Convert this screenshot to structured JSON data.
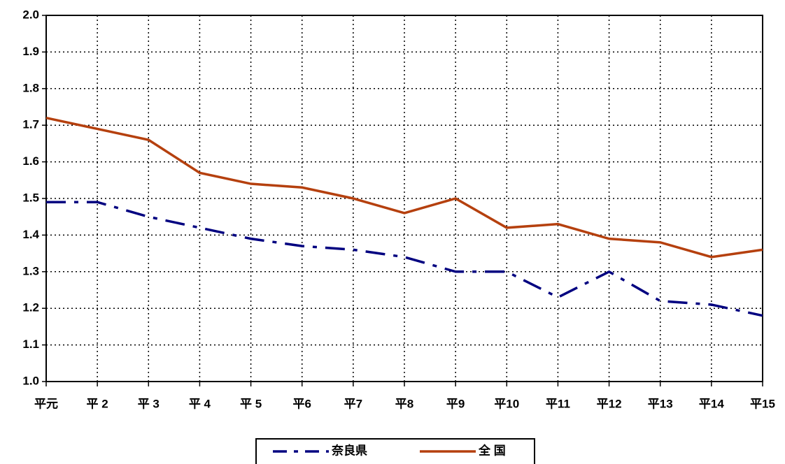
{
  "chart_data": {
    "type": "line",
    "categories": [
      "平元",
      "平 2",
      "平 3",
      "平 4",
      "平 5",
      "平6",
      "平7",
      "平8",
      "平9",
      "平10",
      "平11",
      "平12",
      "平13",
      "平14",
      "平15"
    ],
    "series": [
      {
        "name": "奈良県",
        "color": "#000080",
        "dash": true,
        "values": [
          1.49,
          1.49,
          1.45,
          1.42,
          1.39,
          1.37,
          1.36,
          1.34,
          1.3,
          1.3,
          1.23,
          1.3,
          1.22,
          1.21,
          1.18
        ]
      },
      {
        "name": "全 国",
        "color": "#b5400e",
        "dash": false,
        "values": [
          1.72,
          1.69,
          1.66,
          1.57,
          1.54,
          1.53,
          1.5,
          1.46,
          1.5,
          1.42,
          1.43,
          1.39,
          1.38,
          1.34,
          1.36
        ]
      }
    ],
    "ylim": [
      1.0,
      2.0
    ],
    "yticks": [
      {
        "value": 1.0,
        "label": "1.0"
      },
      1.1,
      1.2,
      1.3,
      1.4,
      1.5,
      1.6,
      1.7,
      1.8,
      1.9,
      {
        "value": 2.0,
        "label": "2.0"
      }
    ],
    "grid": true,
    "legend": "bottom"
  }
}
